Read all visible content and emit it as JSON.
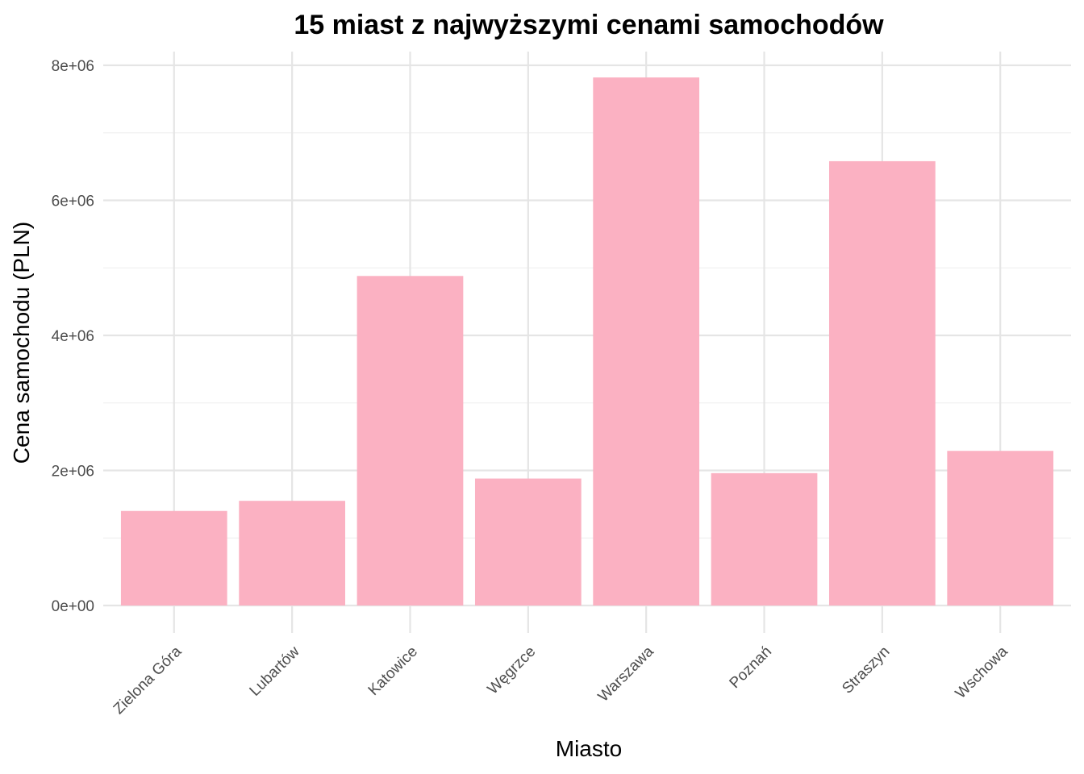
{
  "chart_data": {
    "type": "bar",
    "title": "15 miast z najwyższymi cenami samochodów",
    "xlabel": "Miasto",
    "ylabel": "Cena samochodu (PLN)",
    "categories": [
      "Zielona Góra",
      "Lubartów",
      "Katowice",
      "Węgrzce",
      "Warszawa",
      "Poznań",
      "Straszyn",
      "Wschowa"
    ],
    "values": [
      1400000,
      1550000,
      4880000,
      1880000,
      7820000,
      1960000,
      6580000,
      2290000
    ],
    "ylim": [
      0,
      8000000
    ],
    "yticks": [
      0,
      2000000,
      4000000,
      6000000,
      8000000
    ],
    "ytick_labels": [
      "0e+00",
      "2e+06",
      "4e+06",
      "6e+06",
      "8e+06"
    ],
    "bar_color": "#fbb1c2",
    "grid": true,
    "legend": "none"
  }
}
